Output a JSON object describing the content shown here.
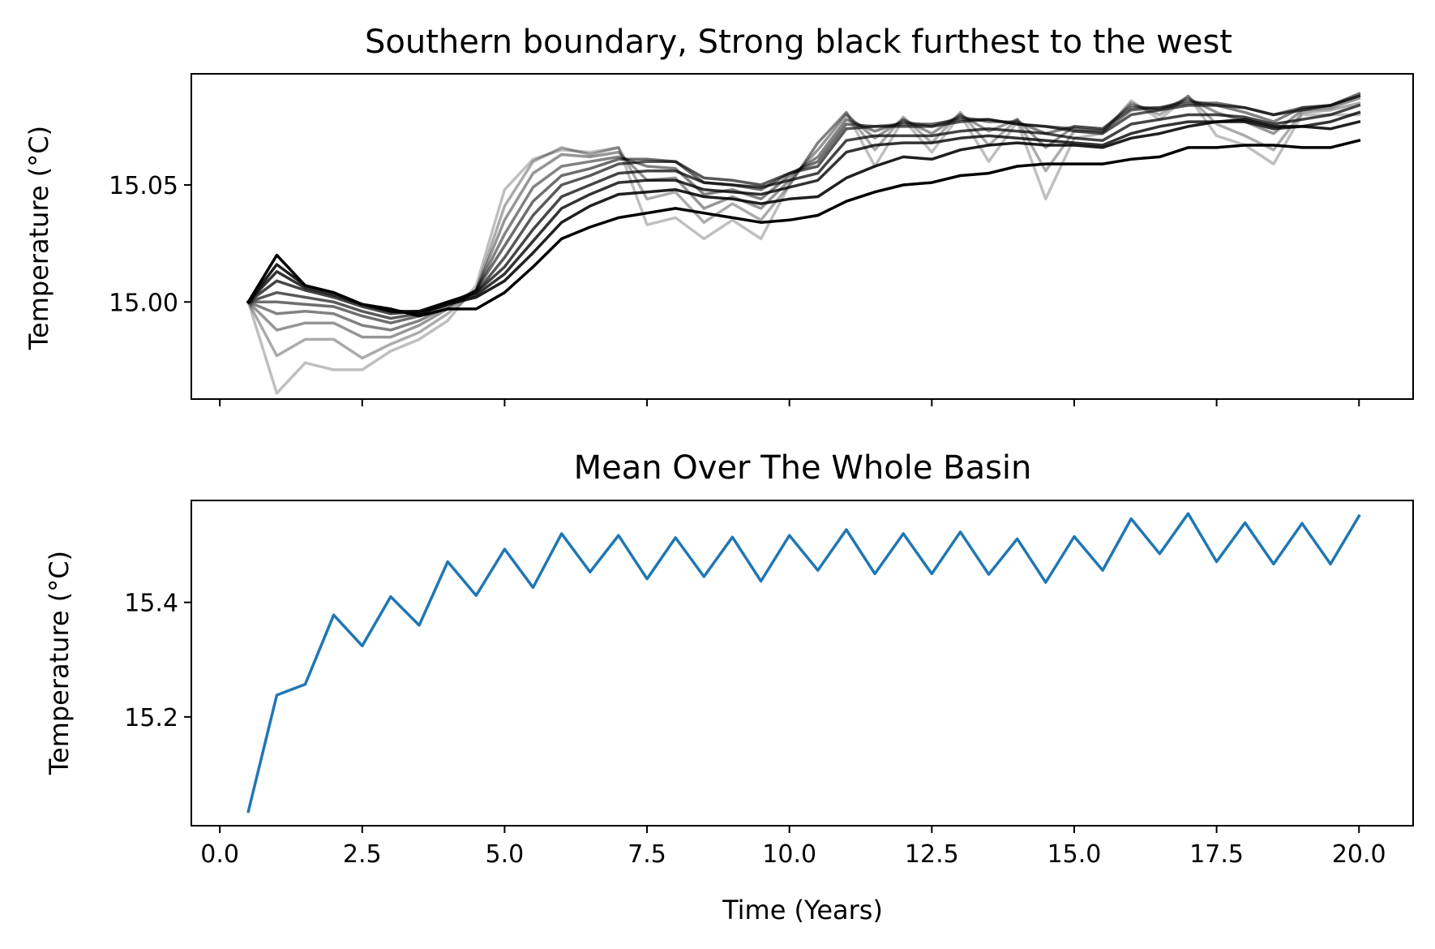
{
  "chart_data": [
    {
      "type": "line",
      "title": "Southern boundary, Strong black furthest to the west",
      "xlabel": "",
      "ylabel": "Temperature (°C)",
      "xlim": [
        -0.5,
        20.95
      ],
      "ylim": [
        14.9585,
        15.0975
      ],
      "xticks": [
        0,
        2.5,
        5,
        7.5,
        10,
        12.5,
        15,
        17.5,
        20
      ],
      "xtick_labels_visible": false,
      "yticks": [
        15.0,
        15.05
      ],
      "ytick_labels": [
        "15.00",
        "15.05"
      ],
      "grid": false,
      "line_color": "#000000",
      "x": [
        0.5,
        1.0,
        1.5,
        2.0,
        2.5,
        3.0,
        3.5,
        4.0,
        4.5,
        5.0,
        5.5,
        6.0,
        6.5,
        7.0,
        7.5,
        8.0,
        8.5,
        9.0,
        9.5,
        10.0,
        10.5,
        11.0,
        11.5,
        12.0,
        12.5,
        13.0,
        13.5,
        14.0,
        14.5,
        15.0,
        15.5,
        16.0,
        16.5,
        17.0,
        17.5,
        18.0,
        18.5,
        19.0,
        19.5,
        20.0
      ],
      "series": [
        {
          "opacity": 0.25,
          "values": [
            15.0,
            14.961,
            14.974,
            14.971,
            14.971,
            14.979,
            14.984,
            14.992,
            15.007,
            15.048,
            15.061,
            15.065,
            15.064,
            15.066,
            15.033,
            15.036,
            15.027,
            15.035,
            15.027,
            15.05,
            15.068,
            15.081,
            15.058,
            15.078,
            15.064,
            15.08,
            15.06,
            15.077,
            15.044,
            15.07,
            15.072,
            15.086,
            15.078,
            15.088,
            15.071,
            15.067,
            15.059,
            15.08,
            15.08,
            15.08
          ]
        },
        {
          "opacity": 0.33,
          "values": [
            15.0,
            14.977,
            14.984,
            14.984,
            14.976,
            14.982,
            14.987,
            14.995,
            15.005,
            15.041,
            15.06,
            15.066,
            15.063,
            15.066,
            15.044,
            15.047,
            15.034,
            15.042,
            15.035,
            15.05,
            15.068,
            15.081,
            15.065,
            15.079,
            15.068,
            15.081,
            15.067,
            15.078,
            15.056,
            15.073,
            15.073,
            15.085,
            15.08,
            15.088,
            15.076,
            15.071,
            15.065,
            15.081,
            15.082,
            15.085
          ]
        },
        {
          "opacity": 0.41,
          "values": [
            15.0,
            14.988,
            14.991,
            14.991,
            14.985,
            14.985,
            14.99,
            14.997,
            15.005,
            15.035,
            15.055,
            15.063,
            15.062,
            15.064,
            15.052,
            15.053,
            15.04,
            15.045,
            15.04,
            15.052,
            15.065,
            15.08,
            15.07,
            15.078,
            15.072,
            15.08,
            15.073,
            15.078,
            15.066,
            15.075,
            15.074,
            15.084,
            15.082,
            15.087,
            15.081,
            15.077,
            15.072,
            15.082,
            15.083,
            15.087
          ]
        },
        {
          "opacity": 0.49,
          "values": [
            15.0,
            14.995,
            14.996,
            14.995,
            14.99,
            14.988,
            14.992,
            14.998,
            15.005,
            15.029,
            15.049,
            15.058,
            15.06,
            15.062,
            15.058,
            15.057,
            15.046,
            15.048,
            15.044,
            15.054,
            15.062,
            15.078,
            15.073,
            15.077,
            15.075,
            15.079,
            15.077,
            15.077,
            15.072,
            15.075,
            15.074,
            15.083,
            15.083,
            15.086,
            15.084,
            15.081,
            15.077,
            15.083,
            15.084,
            15.088
          ]
        },
        {
          "opacity": 0.57,
          "values": [
            15.0,
            15.0,
            14.999,
            14.998,
            14.994,
            14.991,
            14.994,
            14.999,
            15.005,
            15.024,
            15.043,
            15.054,
            15.057,
            15.061,
            15.061,
            15.06,
            15.051,
            15.05,
            15.048,
            15.055,
            15.06,
            15.076,
            15.075,
            15.076,
            15.076,
            15.078,
            15.078,
            15.076,
            15.075,
            15.074,
            15.073,
            15.082,
            15.083,
            15.085,
            15.085,
            15.083,
            15.08,
            15.083,
            15.084,
            15.089
          ]
        },
        {
          "opacity": 0.65,
          "values": [
            15.0,
            15.004,
            15.002,
            15.0,
            14.996,
            14.993,
            14.995,
            15.0,
            15.004,
            15.019,
            15.037,
            15.05,
            15.054,
            15.059,
            15.06,
            15.06,
            15.053,
            15.052,
            15.05,
            15.055,
            15.058,
            15.074,
            15.075,
            15.075,
            15.075,
            15.077,
            15.078,
            15.076,
            15.075,
            15.073,
            15.072,
            15.08,
            15.082,
            15.084,
            15.084,
            15.083,
            15.08,
            15.082,
            15.084,
            15.088
          ]
        },
        {
          "opacity": 0.73,
          "values": [
            15.0,
            15.009,
            15.005,
            15.002,
            14.998,
            14.995,
            14.996,
            15.0,
            15.004,
            15.015,
            15.031,
            15.045,
            15.05,
            15.055,
            15.056,
            15.056,
            15.051,
            15.05,
            15.049,
            15.052,
            15.055,
            15.069,
            15.071,
            15.071,
            15.071,
            15.073,
            15.074,
            15.073,
            15.072,
            15.07,
            15.069,
            15.076,
            15.078,
            15.08,
            15.08,
            15.079,
            15.076,
            15.078,
            15.08,
            15.084
          ]
        },
        {
          "opacity": 0.8,
          "values": [
            15.0,
            15.013,
            15.006,
            15.003,
            14.999,
            14.996,
            14.996,
            15.0,
            15.003,
            15.012,
            15.026,
            15.04,
            15.046,
            15.051,
            15.052,
            15.052,
            15.048,
            15.047,
            15.046,
            15.049,
            15.052,
            15.064,
            15.067,
            15.068,
            15.068,
            15.07,
            15.071,
            15.07,
            15.069,
            15.068,
            15.067,
            15.072,
            15.075,
            15.077,
            15.077,
            15.077,
            15.074,
            15.075,
            15.077,
            15.081
          ]
        },
        {
          "opacity": 0.88,
          "values": [
            15.0,
            15.016,
            15.007,
            15.004,
            14.999,
            14.996,
            14.995,
            14.999,
            15.002,
            15.009,
            15.021,
            15.034,
            15.041,
            15.046,
            15.047,
            15.048,
            15.045,
            15.044,
            15.042,
            15.044,
            15.045,
            15.053,
            15.058,
            15.062,
            15.061,
            15.065,
            15.067,
            15.068,
            15.067,
            15.067,
            15.066,
            15.07,
            15.072,
            15.075,
            15.077,
            15.078,
            15.075,
            15.075,
            15.074,
            15.077
          ]
        },
        {
          "opacity": 1.0,
          "values": [
            15.0,
            15.02,
            15.007,
            15.004,
            14.999,
            14.997,
            14.994,
            14.997,
            14.997,
            15.004,
            15.015,
            15.027,
            15.032,
            15.036,
            15.038,
            15.04,
            15.038,
            15.036,
            15.034,
            15.035,
            15.037,
            15.043,
            15.047,
            15.05,
            15.051,
            15.054,
            15.055,
            15.058,
            15.059,
            15.059,
            15.059,
            15.061,
            15.062,
            15.066,
            15.066,
            15.067,
            15.067,
            15.066,
            15.066,
            15.069
          ]
        }
      ]
    },
    {
      "type": "line",
      "title": "Mean Over The Whole Basin",
      "xlabel": "Time (Years)",
      "ylabel": "Temperature (°C)",
      "xlim": [
        -0.5,
        20.95
      ],
      "ylim": [
        15.01,
        15.578
      ],
      "xticks": [
        0,
        2.5,
        5,
        7.5,
        10,
        12.5,
        15,
        17.5,
        20
      ],
      "xtick_labels": [
        "0.0",
        "2.5",
        "5.0",
        "7.5",
        "10.0",
        "12.5",
        "15.0",
        "17.5",
        "20.0"
      ],
      "yticks": [
        15.2,
        15.4
      ],
      "ytick_labels": [
        "15.2",
        "15.4"
      ],
      "grid": false,
      "line_color": "#1f77b4",
      "x": [
        0.5,
        1.0,
        1.5,
        2.0,
        2.5,
        3.0,
        3.5,
        4.0,
        4.5,
        5.0,
        5.5,
        6.0,
        6.5,
        7.0,
        7.5,
        8.0,
        8.5,
        9.0,
        9.5,
        10.0,
        10.5,
        11.0,
        11.5,
        12.0,
        12.5,
        13.0,
        13.5,
        14.0,
        14.5,
        15.0,
        15.5,
        16.0,
        16.5,
        17.0,
        17.5,
        18.0,
        18.5,
        19.0,
        19.5,
        20.0
      ],
      "values": [
        15.035,
        15.238,
        15.257,
        15.378,
        15.324,
        15.41,
        15.36,
        15.471,
        15.412,
        15.493,
        15.426,
        15.52,
        15.453,
        15.517,
        15.441,
        15.513,
        15.445,
        15.514,
        15.437,
        15.517,
        15.456,
        15.527,
        15.45,
        15.52,
        15.45,
        15.523,
        15.449,
        15.511,
        15.435,
        15.515,
        15.456,
        15.546,
        15.485,
        15.555,
        15.471,
        15.539,
        15.467,
        15.538,
        15.467,
        15.551
      ]
    }
  ]
}
